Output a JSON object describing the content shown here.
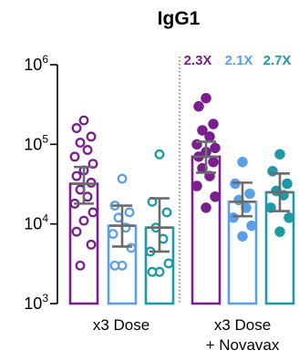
{
  "chart_data": {
    "type": "bar",
    "title": "IgG1",
    "y_scale": "log",
    "ylim": [
      1000,
      1000000
    ],
    "y_ticks": [
      {
        "value": 1000,
        "base": "10",
        "exp": "3"
      },
      {
        "value": 10000,
        "base": "10",
        "exp": "4"
      },
      {
        "value": 100000,
        "base": "10",
        "exp": "5"
      },
      {
        "value": 1000000,
        "base": "10",
        "exp": "6"
      }
    ],
    "groups": [
      {
        "label_lines": [
          "x3 Dose"
        ]
      },
      {
        "label_lines": [
          "x3 Dose",
          "+ Novavax"
        ]
      }
    ],
    "fold_labels": [
      {
        "text": "2.3X",
        "color": "#7b1f8f"
      },
      {
        "text": "2.1X",
        "color": "#5aa0e8"
      },
      {
        "text": "2.7X",
        "color": "#1e9aa6"
      }
    ],
    "bars": [
      {
        "group": 0,
        "color": "#7b1f8f",
        "filled": false,
        "mean": 32000,
        "err_low": 18000,
        "err_high": 52000,
        "points": [
          200000,
          160000,
          125000,
          105000,
          85000,
          70000,
          57000,
          47000,
          40000,
          33000,
          27000,
          22000,
          18000,
          14000,
          11000,
          8000,
          5500,
          3000
        ]
      },
      {
        "group": 0,
        "color": "#5aa0e8",
        "filled": false,
        "mean": 9500,
        "err_low": 5200,
        "err_high": 17000,
        "points": [
          37000,
          17000,
          14000,
          12000,
          9000,
          7500,
          5000,
          3000,
          3000
        ]
      },
      {
        "group": 0,
        "color": "#1e9aa6",
        "filled": false,
        "mean": 9000,
        "err_low": 4500,
        "err_high": 21000,
        "points": [
          75000,
          19000,
          14000,
          9000,
          6500,
          4500,
          3200,
          2500,
          2500
        ]
      },
      {
        "group": 1,
        "color": "#7b1f8f",
        "filled": true,
        "mean": 70000,
        "err_low": 44000,
        "err_high": 108000,
        "points": [
          380000,
          300000,
          180000,
          150000,
          125000,
          100000,
          90000,
          80000,
          70000,
          60000,
          50000,
          40000,
          30000,
          22000,
          16000
        ]
      },
      {
        "group": 1,
        "color": "#5aa0e8",
        "filled": true,
        "mean": 19000,
        "err_low": 12500,
        "err_high": 33000,
        "points": [
          60000,
          32000,
          24000,
          20000,
          16000,
          12000,
          9500,
          7000
        ]
      },
      {
        "group": 1,
        "color": "#1e9aa6",
        "filled": true,
        "mean": 25000,
        "err_low": 14500,
        "err_high": 43000,
        "points": [
          75000,
          46000,
          32000,
          26000,
          23000,
          16000,
          12000,
          8000
        ]
      }
    ]
  }
}
